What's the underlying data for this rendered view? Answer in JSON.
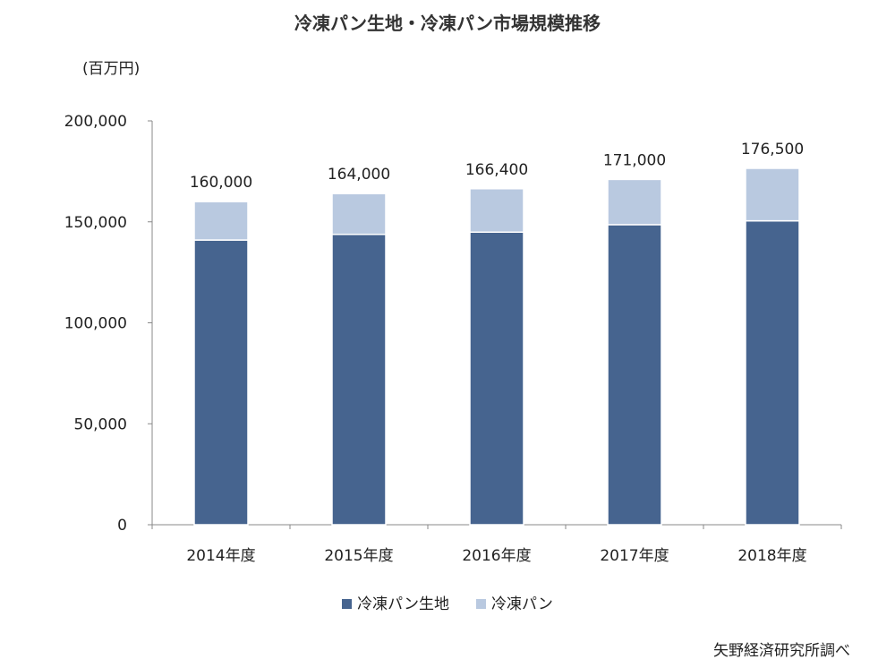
{
  "chart_data": {
    "type": "bar",
    "stacked": true,
    "title": "冷凍パン生地・冷凍パン市場規模推移",
    "ylabel": "(百万円)",
    "xlabel": "",
    "ylim": [
      0,
      200000
    ],
    "yticks": [
      0,
      50000,
      100000,
      150000,
      200000
    ],
    "ytick_labels": [
      "0",
      "50,000",
      "100,000",
      "150,000",
      "200,000"
    ],
    "categories": [
      "2014年度",
      "2015年度",
      "2016年度",
      "2017年度",
      "2018年度"
    ],
    "series": [
      {
        "name": "冷凍パン生地",
        "color": "#46648f",
        "values": [
          141000,
          143800,
          144900,
          148600,
          150500
        ]
      },
      {
        "name": "冷凍パン",
        "color": "#b9c9e0",
        "values": [
          19000,
          20200,
          21500,
          22400,
          26000
        ]
      }
    ],
    "totals": [
      160000,
      164000,
      166400,
      171000,
      176500
    ],
    "total_labels": [
      "160,000",
      "164,000",
      "166,400",
      "171,000",
      "176,500"
    ],
    "legend_position": "bottom",
    "source": "矢野経済研究所調べ"
  }
}
